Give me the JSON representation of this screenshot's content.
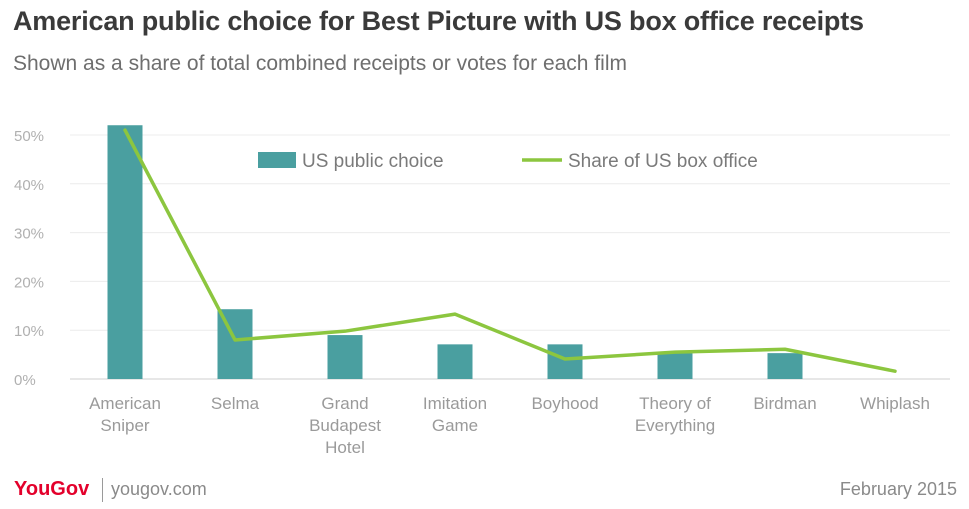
{
  "header": {
    "title": "American public choice for Best Picture with US box office receipts",
    "subtitle": "Shown as a share of total combined receipts or votes for each film"
  },
  "footer": {
    "brand": "YouGov",
    "site": "yougov.com",
    "date": "February 2015"
  },
  "colors": {
    "bar": "#4a9fa0",
    "line": "#8cc63f",
    "brand": "#e3002b"
  },
  "chart_data": {
    "type": "bar",
    "categories": [
      [
        "American",
        "Sniper"
      ],
      [
        "Selma"
      ],
      [
        "Grand",
        "Budapest",
        "Hotel"
      ],
      [
        "Imitation",
        "Game"
      ],
      [
        "Boyhood"
      ],
      [
        "Theory of",
        "Everything"
      ],
      [
        "Birdman"
      ],
      [
        "Whiplash"
      ]
    ],
    "series": [
      {
        "name": "US public choice",
        "kind": "bar",
        "values": [
          52,
          14.3,
          9,
          7.1,
          7.1,
          5.3,
          5.3,
          0
        ]
      },
      {
        "name": "Share of US box office",
        "kind": "line",
        "values": [
          51,
          8,
          9.8,
          13.3,
          4.1,
          5.5,
          6.1,
          1.6
        ]
      }
    ],
    "ylim": [
      0,
      52
    ],
    "yticks": [
      "0%",
      "10%",
      "20%",
      "30%",
      "40%",
      "50%"
    ],
    "ytick_values": [
      0,
      10,
      20,
      30,
      40,
      50
    ],
    "grid": true,
    "legend_position": "top"
  }
}
